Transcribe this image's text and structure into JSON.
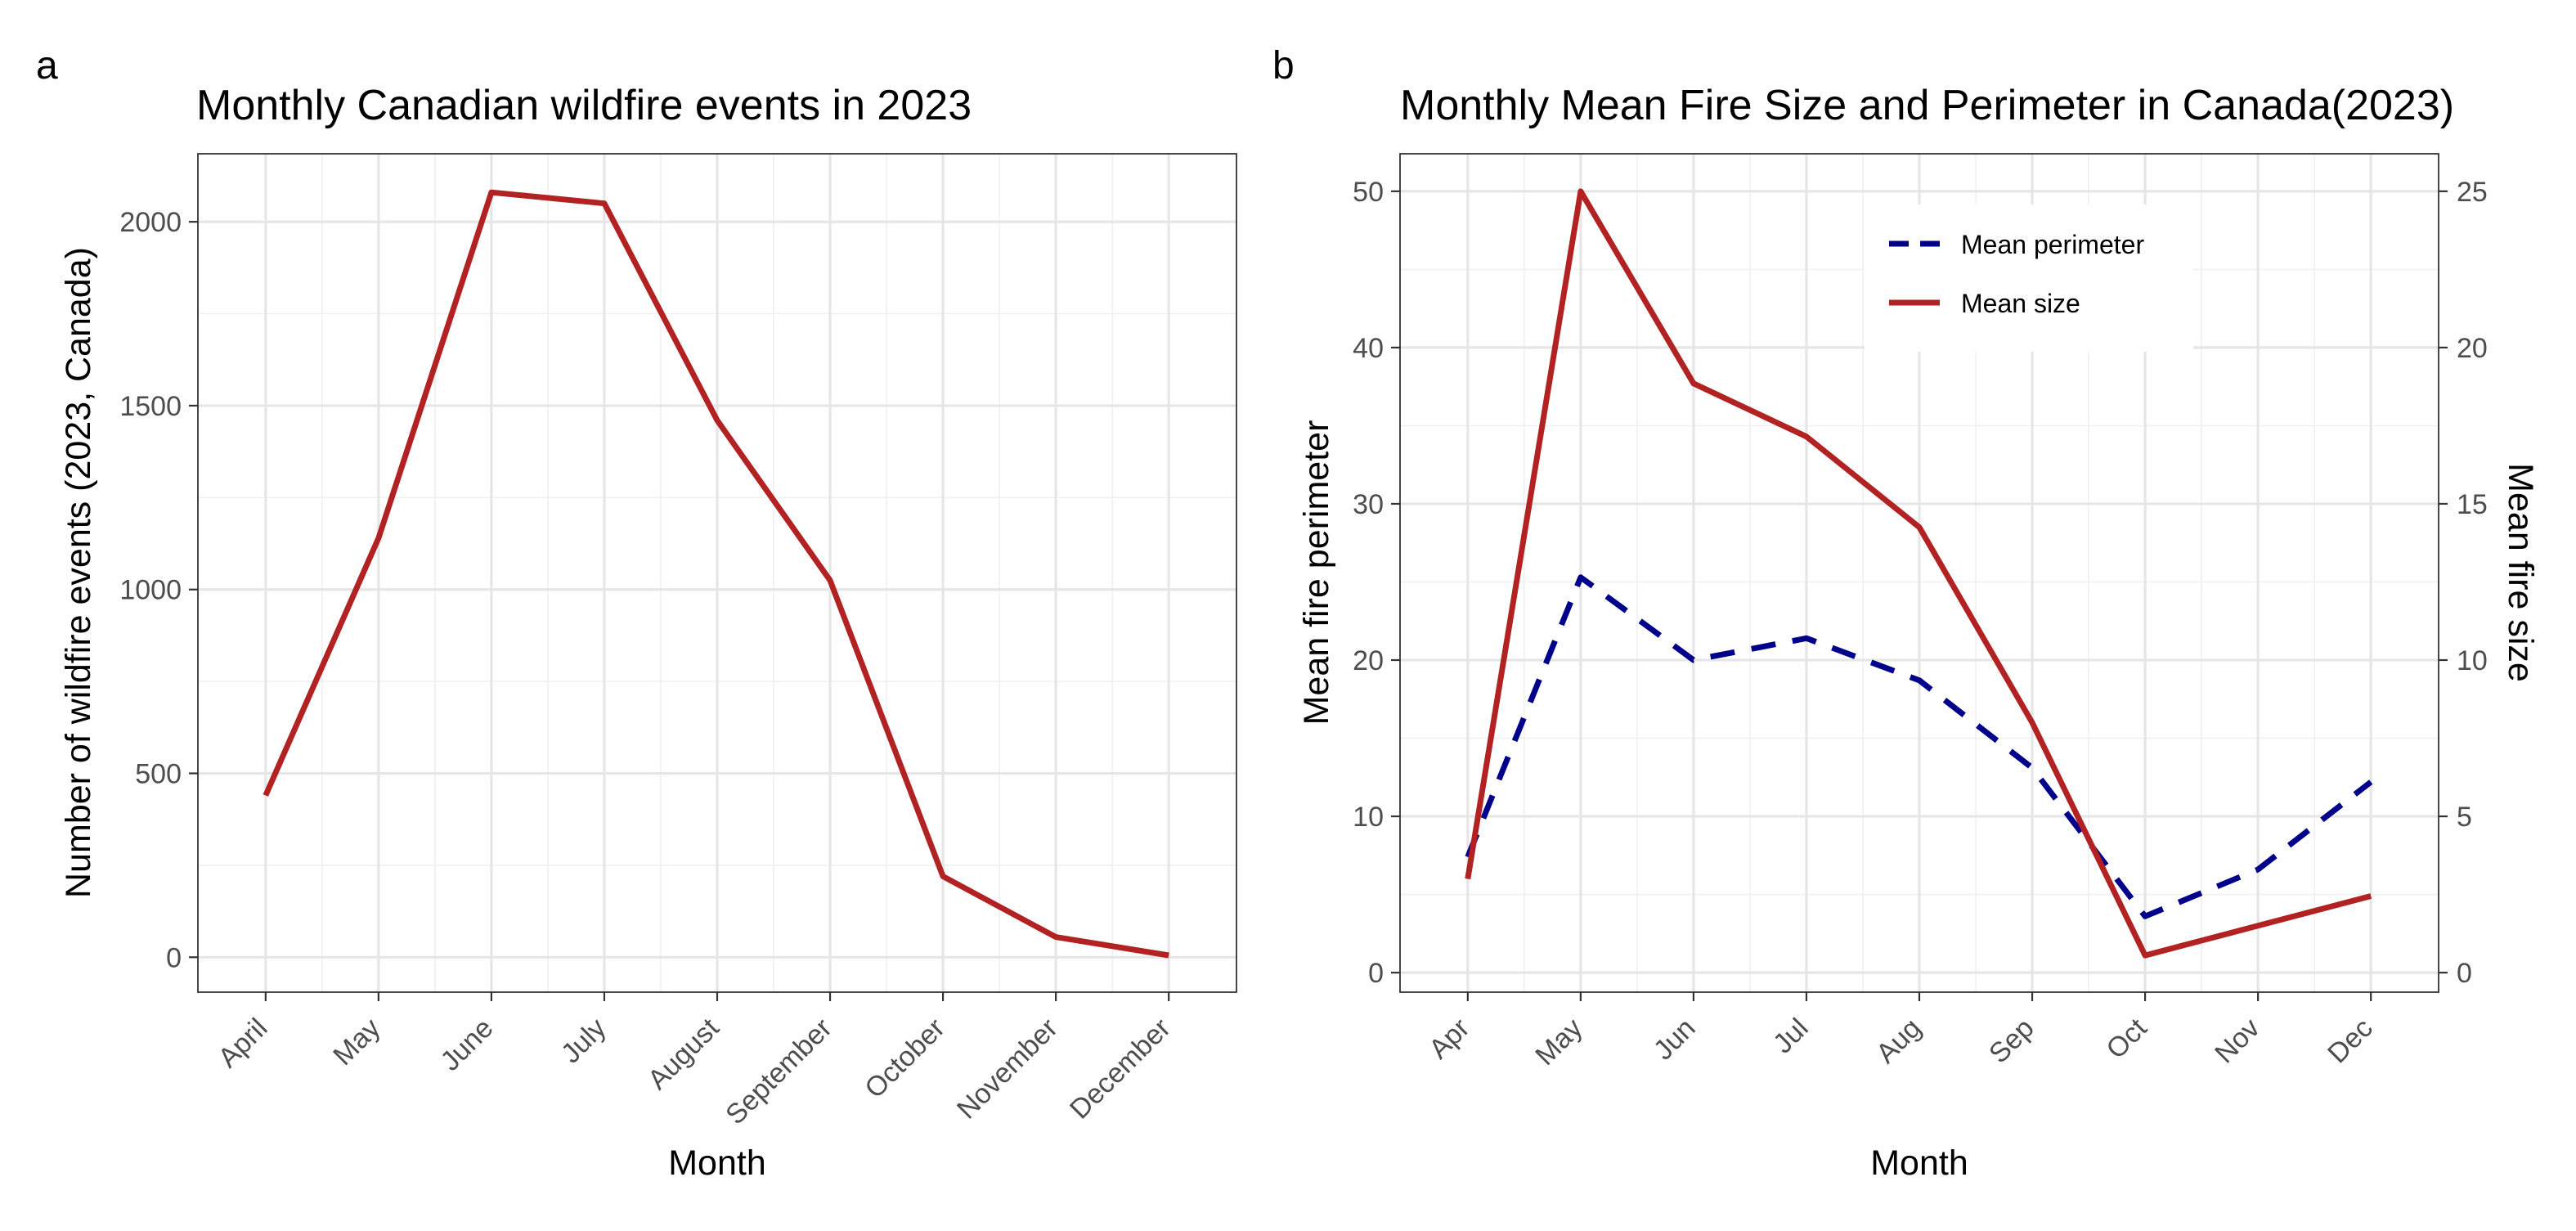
{
  "chart_data": [
    {
      "panel_label": "a",
      "type": "line",
      "title": "Monthly Canadian wildfire events in 2023",
      "xlabel": "Month",
      "ylabel": "Number of wildfire events (2023, Canada)",
      "categories": [
        "April",
        "May",
        "June",
        "July",
        "August",
        "September",
        "October",
        "November",
        "December"
      ],
      "series": [
        {
          "values": [
            440,
            1140,
            2080,
            2050,
            1460,
            1025,
            220,
            55,
            5
          ],
          "color": "#B22222",
          "dash": "solid"
        }
      ],
      "ylim": [
        -95,
        2185
      ],
      "yticks": [
        0,
        500,
        1000,
        1500,
        2000
      ],
      "grid": true
    },
    {
      "panel_label": "b",
      "type": "line",
      "title": "Monthly Mean Fire Size and Perimeter in Canada(2023)",
      "xlabel": "Month",
      "ylabel": "Mean fire perimeter",
      "ylabel_right": "Mean fire size",
      "categories": [
        "Apr",
        "May",
        "Jun",
        "Jul",
        "Aug",
        "Sep",
        "Oct",
        "Nov",
        "Dec"
      ],
      "series": [
        {
          "name": "Mean perimeter",
          "axis": "left",
          "values": [
            7.4,
            25.3,
            20.0,
            21.4,
            18.7,
            13.1,
            3.6,
            6.6,
            12.2
          ],
          "color": "#00008B",
          "dash": "dashed"
        },
        {
          "name": "Mean size",
          "axis": "right",
          "values": [
            3.0,
            25.0,
            18.85,
            17.15,
            14.25,
            8.0,
            0.55,
            1.5,
            2.45
          ],
          "color": "#B22222",
          "dash": "solid"
        }
      ],
      "ylim": [
        -1.25,
        52.4
      ],
      "yticks": [
        0,
        10,
        20,
        30,
        40,
        50
      ],
      "ylim_right": [
        -0.625,
        26.2
      ],
      "yticks_right": [
        0,
        5,
        10,
        15,
        20,
        25
      ],
      "legend_position": "top-right",
      "grid": true
    }
  ]
}
